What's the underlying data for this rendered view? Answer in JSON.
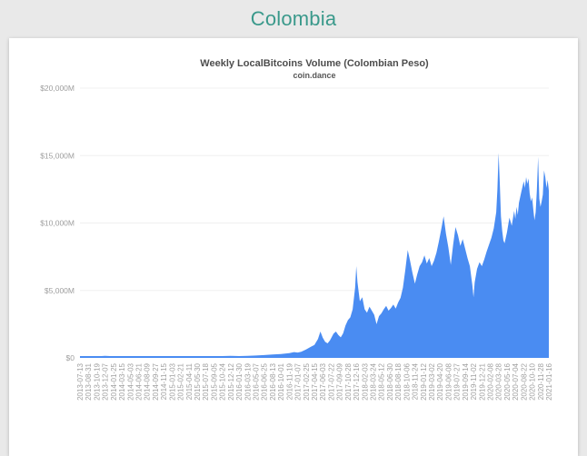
{
  "page": {
    "title": "Colombia",
    "title_color": "#3a998b",
    "background_color": "#e9e9e9",
    "card_color": "#ffffff"
  },
  "chart": {
    "title": "Weekly LocalBitcoins Volume (Colombian Peso)",
    "subtitle": "coin.dance",
    "area_color": "#4a8cf2",
    "gridline_color": "#f0f0f0",
    "axis_label_color": "#9e9e9e"
  },
  "chart_data": {
    "type": "area",
    "title": "Weekly LocalBitcoins Volume (Colombian Peso)",
    "subtitle": "coin.dance",
    "x_start": "2013-07-13",
    "x_end": "2021-01-16",
    "x_interval": "weekly",
    "x_tick_rotation": -90,
    "ylim": [
      0,
      20000
    ],
    "y_unit": "millions of Colombian Pesos (displayed as $M)",
    "y_ticks": [
      "$0",
      "$5,000M",
      "$10,000M",
      "$15,000M",
      "$20,000M"
    ],
    "grid": true,
    "legend": "none",
    "x_ticks": [
      "2013-07-13",
      "2013-08-31",
      "2013-10-19",
      "2013-12-07",
      "2014-01-25",
      "2014-03-15",
      "2014-05-03",
      "2014-06-21",
      "2014-08-09",
      "2014-09-27",
      "2014-11-15",
      "2015-01-03",
      "2015-02-21",
      "2015-04-11",
      "2015-05-30",
      "2015-07-18",
      "2015-09-05",
      "2015-10-24",
      "2015-12-12",
      "2016-01-30",
      "2016-03-19",
      "2016-05-07",
      "2016-06-25",
      "2016-08-13",
      "2016-10-01",
      "2016-11-19",
      "2017-01-07",
      "2017-02-25",
      "2017-04-15",
      "2017-06-03",
      "2017-07-22",
      "2017-09-09",
      "2017-10-28",
      "2017-12-16",
      "2018-02-03",
      "2018-03-24",
      "2018-05-12",
      "2018-06-30",
      "2018-08-18",
      "2018-10-06",
      "2018-11-24",
      "2019-01-12",
      "2019-03-02",
      "2019-04-20",
      "2019-06-08",
      "2019-07-27",
      "2019-09-14",
      "2019-11-02",
      "2019-12-21",
      "2020-02-08",
      "2020-03-28",
      "2020-05-16",
      "2020-07-04",
      "2020-08-22",
      "2020-10-10",
      "2020-11-28",
      "2021-01-16"
    ],
    "series": [
      [
        "2013-07-13",
        40
      ],
      [
        "2013-08-31",
        60
      ],
      [
        "2013-10-19",
        90
      ],
      [
        "2013-11-16",
        130
      ],
      [
        "2013-12-07",
        150
      ],
      [
        "2014-01-04",
        120
      ],
      [
        "2014-01-25",
        100
      ],
      [
        "2014-03-15",
        80
      ],
      [
        "2014-05-03",
        70
      ],
      [
        "2014-06-21",
        90
      ],
      [
        "2014-08-09",
        75
      ],
      [
        "2014-09-27",
        65
      ],
      [
        "2014-11-15",
        85
      ],
      [
        "2015-01-03",
        75
      ],
      [
        "2015-02-21",
        95
      ],
      [
        "2015-04-11",
        85
      ],
      [
        "2015-05-30",
        105
      ],
      [
        "2015-07-18",
        115
      ],
      [
        "2015-09-05",
        95
      ],
      [
        "2015-10-24",
        125
      ],
      [
        "2015-12-12",
        145
      ],
      [
        "2016-01-30",
        135
      ],
      [
        "2016-03-19",
        155
      ],
      [
        "2016-05-07",
        175
      ],
      [
        "2016-06-25",
        210
      ],
      [
        "2016-08-13",
        250
      ],
      [
        "2016-10-01",
        290
      ],
      [
        "2016-11-19",
        360
      ],
      [
        "2016-12-17",
        430
      ],
      [
        "2017-01-07",
        400
      ],
      [
        "2017-01-28",
        460
      ],
      [
        "2017-02-25",
        620
      ],
      [
        "2017-03-25",
        820
      ],
      [
        "2017-04-15",
        960
      ],
      [
        "2017-05-06",
        1400
      ],
      [
        "2017-05-20",
        1950
      ],
      [
        "2017-06-03",
        1500
      ],
      [
        "2017-06-17",
        1200
      ],
      [
        "2017-07-01",
        1080
      ],
      [
        "2017-07-15",
        1300
      ],
      [
        "2017-08-05",
        1800
      ],
      [
        "2017-08-19",
        1950
      ],
      [
        "2017-09-02",
        1700
      ],
      [
        "2017-09-16",
        1520
      ],
      [
        "2017-09-30",
        1820
      ],
      [
        "2017-10-14",
        2400
      ],
      [
        "2017-10-28",
        2800
      ],
      [
        "2017-11-11",
        3000
      ],
      [
        "2017-11-25",
        3600
      ],
      [
        "2017-12-09",
        5200
      ],
      [
        "2017-12-16",
        6800
      ],
      [
        "2017-12-23",
        5600
      ],
      [
        "2018-01-06",
        4200
      ],
      [
        "2018-01-20",
        4500
      ],
      [
        "2018-02-03",
        3600
      ],
      [
        "2018-02-17",
        3350
      ],
      [
        "2018-03-03",
        3800
      ],
      [
        "2018-03-17",
        3500
      ],
      [
        "2018-03-31",
        3200
      ],
      [
        "2018-04-14",
        2500
      ],
      [
        "2018-04-28",
        3100
      ],
      [
        "2018-05-12",
        3300
      ],
      [
        "2018-05-26",
        3600
      ],
      [
        "2018-06-09",
        3850
      ],
      [
        "2018-06-23",
        3500
      ],
      [
        "2018-07-07",
        3700
      ],
      [
        "2018-07-21",
        3950
      ],
      [
        "2018-08-04",
        3650
      ],
      [
        "2018-08-18",
        4100
      ],
      [
        "2018-09-01",
        4450
      ],
      [
        "2018-09-15",
        5200
      ],
      [
        "2018-09-29",
        6500
      ],
      [
        "2018-10-13",
        8000
      ],
      [
        "2018-10-27",
        7200
      ],
      [
        "2018-11-10",
        6300
      ],
      [
        "2018-11-24",
        5500
      ],
      [
        "2018-12-08",
        6200
      ],
      [
        "2018-12-22",
        6800
      ],
      [
        "2019-01-05",
        7100
      ],
      [
        "2019-01-19",
        7600
      ],
      [
        "2019-02-02",
        7000
      ],
      [
        "2019-02-16",
        7400
      ],
      [
        "2019-03-02",
        6800
      ],
      [
        "2019-03-16",
        7200
      ],
      [
        "2019-03-30",
        7800
      ],
      [
        "2019-04-13",
        8600
      ],
      [
        "2019-04-27",
        9500
      ],
      [
        "2019-05-11",
        10500
      ],
      [
        "2019-05-25",
        9200
      ],
      [
        "2019-06-08",
        8200
      ],
      [
        "2019-06-22",
        6900
      ],
      [
        "2019-07-06",
        8400
      ],
      [
        "2019-07-20",
        9700
      ],
      [
        "2019-08-03",
        9100
      ],
      [
        "2019-08-17",
        8300
      ],
      [
        "2019-08-31",
        8800
      ],
      [
        "2019-09-14",
        8100
      ],
      [
        "2019-09-28",
        7400
      ],
      [
        "2019-10-12",
        6800
      ],
      [
        "2019-10-26",
        5400
      ],
      [
        "2019-11-02",
        4500
      ],
      [
        "2019-11-09",
        5600
      ],
      [
        "2019-11-23",
        6600
      ],
      [
        "2019-12-07",
        7100
      ],
      [
        "2019-12-21",
        6800
      ],
      [
        "2020-01-04",
        7300
      ],
      [
        "2020-01-18",
        7900
      ],
      [
        "2020-02-01",
        8400
      ],
      [
        "2020-02-15",
        8900
      ],
      [
        "2020-02-29",
        9600
      ],
      [
        "2020-03-14",
        10800
      ],
      [
        "2020-03-21",
        12500
      ],
      [
        "2020-03-28",
        15200
      ],
      [
        "2020-04-04",
        13000
      ],
      [
        "2020-04-11",
        10500
      ],
      [
        "2020-04-18",
        9400
      ],
      [
        "2020-04-25",
        8700
      ],
      [
        "2020-05-02",
        8500
      ],
      [
        "2020-05-16",
        9300
      ],
      [
        "2020-05-30",
        10400
      ],
      [
        "2020-06-13",
        9800
      ],
      [
        "2020-06-27",
        10900
      ],
      [
        "2020-07-04",
        10300
      ],
      [
        "2020-07-11",
        11200
      ],
      [
        "2020-07-18",
        10600
      ],
      [
        "2020-07-25",
        11500
      ],
      [
        "2020-08-08",
        12300
      ],
      [
        "2020-08-22",
        13100
      ],
      [
        "2020-08-29",
        12600
      ],
      [
        "2020-09-05",
        13400
      ],
      [
        "2020-09-12",
        12900
      ],
      [
        "2020-09-19",
        13300
      ],
      [
        "2020-09-26",
        12200
      ],
      [
        "2020-10-03",
        11600
      ],
      [
        "2020-10-10",
        11900
      ],
      [
        "2020-10-17",
        11000
      ],
      [
        "2020-10-24",
        10200
      ],
      [
        "2020-10-31",
        10800
      ],
      [
        "2020-11-07",
        12400
      ],
      [
        "2020-11-14",
        14900
      ],
      [
        "2020-11-21",
        11800
      ],
      [
        "2020-11-28",
        11200
      ],
      [
        "2020-12-05",
        11600
      ],
      [
        "2020-12-12",
        12100
      ],
      [
        "2020-12-19",
        13900
      ],
      [
        "2020-12-26",
        13400
      ],
      [
        "2021-01-02",
        12600
      ],
      [
        "2021-01-09",
        13200
      ],
      [
        "2021-01-16",
        12400
      ]
    ]
  }
}
